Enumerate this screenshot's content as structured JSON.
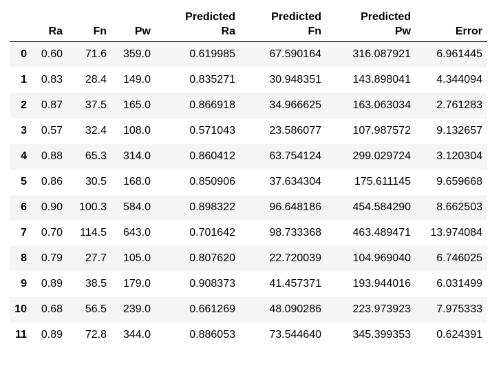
{
  "table": {
    "columns": [
      {
        "key": "index",
        "lines": [
          ""
        ]
      },
      {
        "key": "ra",
        "lines": [
          "Ra"
        ]
      },
      {
        "key": "fn",
        "lines": [
          "Fn"
        ]
      },
      {
        "key": "pw",
        "lines": [
          "Pw"
        ]
      },
      {
        "key": "predicted_ra",
        "lines": [
          "Predicted",
          "Ra"
        ]
      },
      {
        "key": "predicted_fn",
        "lines": [
          "Predicted",
          "Fn"
        ]
      },
      {
        "key": "predicted_pw",
        "lines": [
          "Predicted",
          "Pw"
        ]
      },
      {
        "key": "error",
        "lines": [
          "Error"
        ]
      }
    ],
    "rows": [
      [
        "0",
        "0.60",
        "71.6",
        "359.0",
        "0.619985",
        "67.590164",
        "316.087921",
        "6.961445"
      ],
      [
        "1",
        "0.83",
        "28.4",
        "149.0",
        "0.835271",
        "30.948351",
        "143.898041",
        "4.344094"
      ],
      [
        "2",
        "0.87",
        "37.5",
        "165.0",
        "0.866918",
        "34.966625",
        "163.063034",
        "2.761283"
      ],
      [
        "3",
        "0.57",
        "32.4",
        "108.0",
        "0.571043",
        "23.586077",
        "107.987572",
        "9.132657"
      ],
      [
        "4",
        "0.88",
        "65.3",
        "314.0",
        "0.860412",
        "63.754124",
        "299.029724",
        "3.120304"
      ],
      [
        "5",
        "0.86",
        "30.5",
        "168.0",
        "0.850906",
        "37.634304",
        "175.611145",
        "9.659668"
      ],
      [
        "6",
        "0.90",
        "100.3",
        "584.0",
        "0.898322",
        "96.648186",
        "454.584290",
        "8.662503"
      ],
      [
        "7",
        "0.70",
        "114.5",
        "643.0",
        "0.701642",
        "98.733368",
        "463.489471",
        "13.974084"
      ],
      [
        "8",
        "0.79",
        "27.7",
        "105.0",
        "0.807620",
        "22.720039",
        "104.969040",
        "6.746025"
      ],
      [
        "9",
        "0.89",
        "38.5",
        "179.0",
        "0.908373",
        "41.457371",
        "193.944016",
        "6.031499"
      ],
      [
        "10",
        "0.68",
        "56.5",
        "239.0",
        "0.661269",
        "48.090286",
        "223.973923",
        "7.975333"
      ],
      [
        "11",
        "0.89",
        "72.8",
        "344.0",
        "0.886053",
        "73.544640",
        "345.399353",
        "0.624391"
      ]
    ]
  }
}
